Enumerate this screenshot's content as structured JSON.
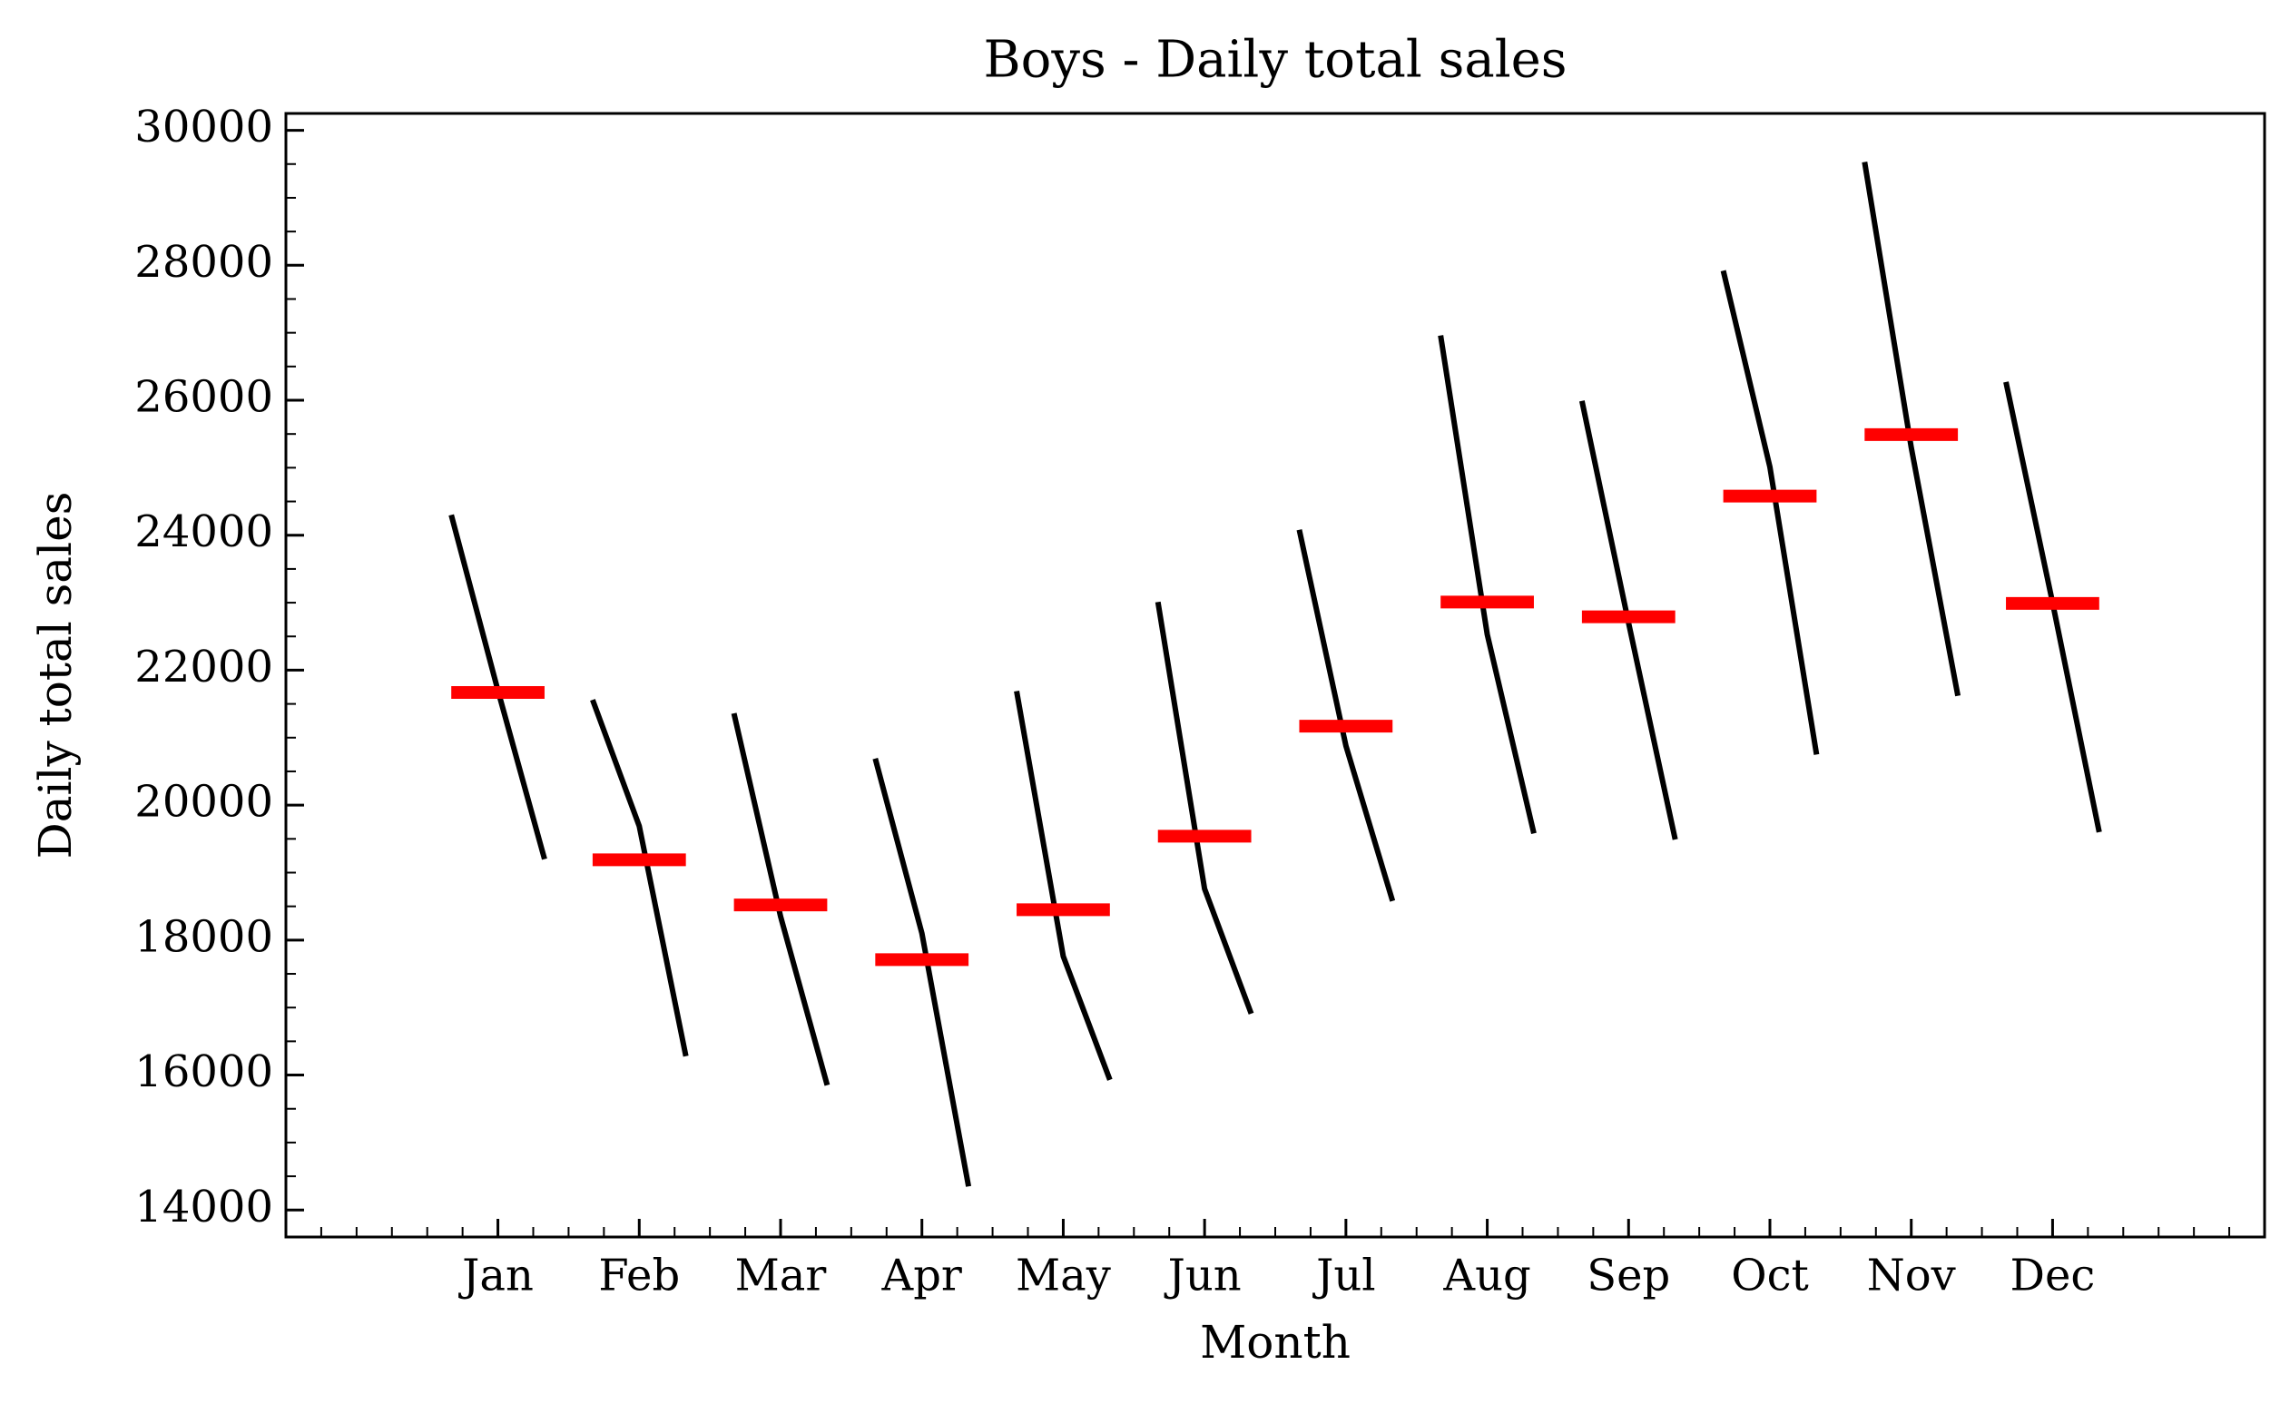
{
  "chart_data": {
    "type": "month_plot",
    "title": "Boys - Daily total sales",
    "xlabel": "Month",
    "ylabel": "Daily total sales",
    "categories": [
      "Jan",
      "Feb",
      "Mar",
      "Apr",
      "May",
      "Jun",
      "Jul",
      "Aug",
      "Sep",
      "Oct",
      "Nov",
      "Dec"
    ],
    "values": [
      [
        24300,
        21700,
        19200
      ],
      [
        21560,
        19690,
        16280
      ],
      [
        21360,
        18350,
        15850
      ],
      [
        20690,
        18100,
        14350
      ],
      [
        21690,
        17760,
        15930
      ],
      [
        23010,
        18760,
        16910
      ],
      [
        24080,
        20880,
        18580
      ],
      [
        26960,
        22530,
        19580
      ],
      [
        25990,
        22700,
        19490
      ],
      [
        27920,
        25010,
        20750
      ],
      [
        29530,
        25300,
        21620
      ],
      [
        26270,
        23000,
        19600
      ]
    ],
    "means": [
      21670,
      19190,
      18520,
      17710,
      18450,
      19540,
      21170,
      23010,
      22790,
      24580,
      25490,
      22990
    ],
    "line_color": "#000000",
    "mean_color": "#ff0000",
    "xlim": [
      -0.5,
      13.5
    ],
    "ylim": [
      13600,
      30250
    ],
    "yticks": [
      14000,
      16000,
      18000,
      20000,
      22000,
      24000,
      26000,
      28000,
      30000
    ]
  }
}
